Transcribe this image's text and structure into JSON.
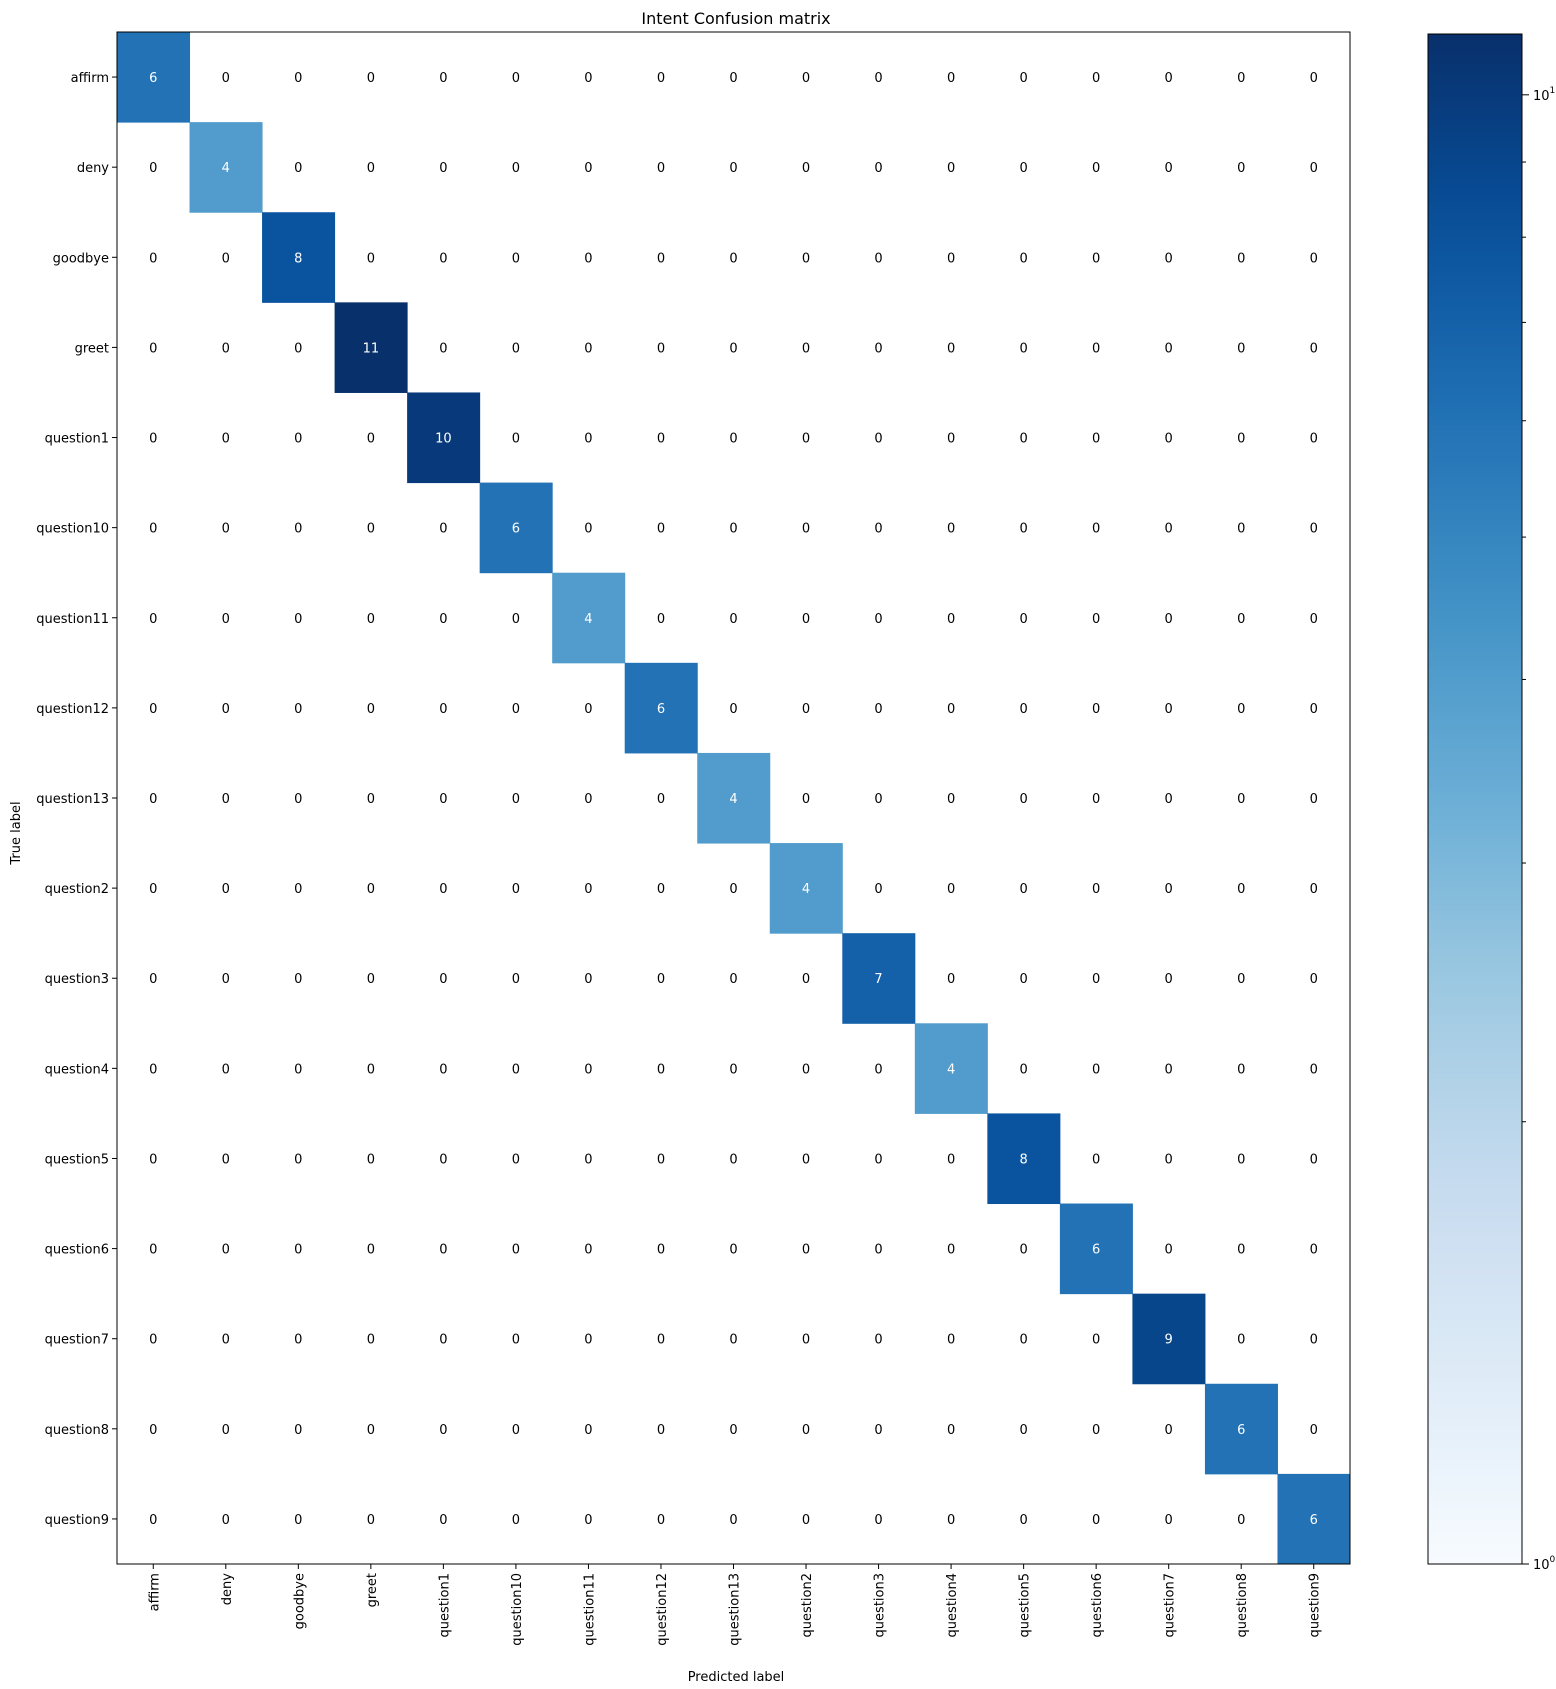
{
  "chart_data": {
    "type": "heatmap",
    "title": "Intent Confusion matrix",
    "xlabel": "Predicted label",
    "ylabel": "True label",
    "labels": [
      "affirm",
      "deny",
      "goodbye",
      "greet",
      "question1",
      "question10",
      "question11",
      "question12",
      "question13",
      "question2",
      "question3",
      "question4",
      "question5",
      "question6",
      "question7",
      "question8",
      "question9"
    ],
    "diagonal": [
      6,
      4,
      8,
      11,
      10,
      6,
      4,
      6,
      4,
      4,
      7,
      4,
      8,
      6,
      9,
      6,
      6
    ],
    "off_diagonal_value": 0,
    "colormap": "Blues",
    "color_scale": "log",
    "colorbar": {
      "range": [
        1,
        11
      ],
      "tick_labels": [
        {
          "base": "10",
          "exp": "0",
          "value": 1
        },
        {
          "base": "10",
          "exp": "1",
          "value": 10
        }
      ],
      "minor_ticks": [
        2,
        3,
        4,
        5,
        6,
        7,
        8,
        9
      ]
    },
    "colors": {
      "min": "#f7fbff",
      "max": "#08306b",
      "text_dark_cell": "#ffffff",
      "text_light_cell": "#000000"
    }
  }
}
